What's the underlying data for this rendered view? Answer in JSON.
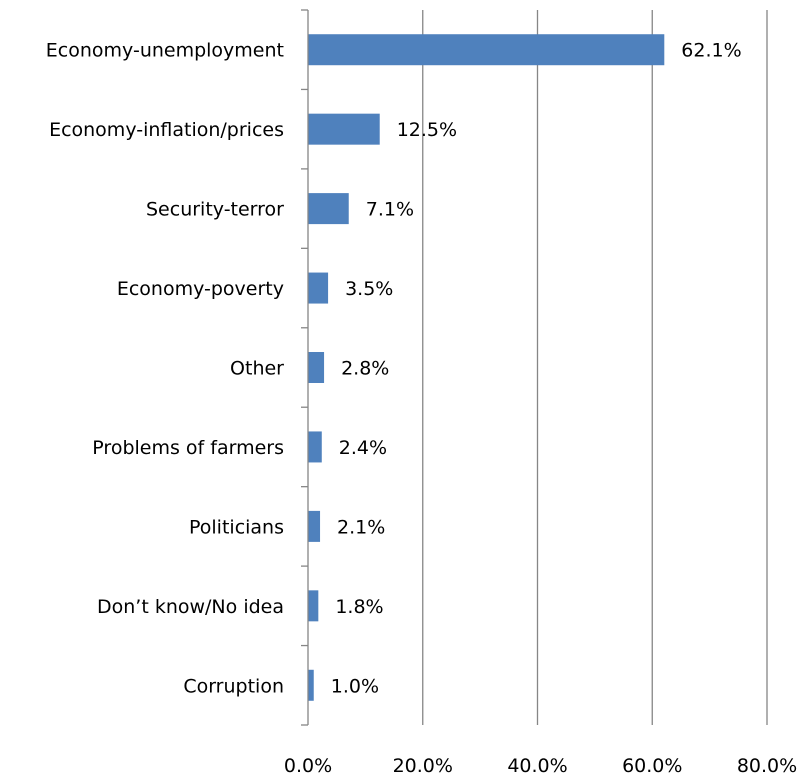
{
  "chart_data": {
    "type": "bar",
    "orientation": "horizontal",
    "categories": [
      "Economy-unemployment",
      "Economy-inflation/prices",
      "Security-terror",
      "Economy-poverty",
      "Other",
      "Problems of farmers",
      "Politicians",
      "Don’t know/No idea",
      "Corruption"
    ],
    "values": [
      62.1,
      12.5,
      7.1,
      3.5,
      2.8,
      2.4,
      2.1,
      1.8,
      1.0
    ],
    "data_labels": [
      "62.1%",
      "12.5%",
      "7.1%",
      "3.5%",
      "2.8%",
      "2.4%",
      "2.1%",
      "1.8%",
      "1.0%"
    ],
    "x_ticks": [
      "0.0%",
      "20.0%",
      "40.0%",
      "60.0%",
      "80.0%"
    ],
    "xlim": [
      0,
      80
    ],
    "title": "",
    "xlabel": "",
    "ylabel": "",
    "grid": "vertical gridlines",
    "legend": "none",
    "bar_color": "#4f81bd",
    "grid_color": "#868686"
  }
}
